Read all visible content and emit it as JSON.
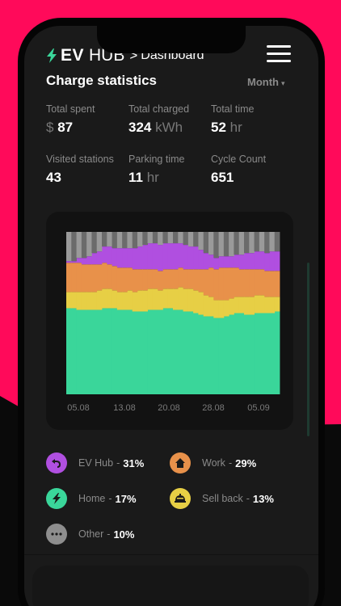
{
  "header": {
    "brand_strong": "EV",
    "brand_rest": "HUB",
    "separator": ">",
    "page": "Dashboard"
  },
  "section": {
    "title": "Charge statistics",
    "period": "Month"
  },
  "stats": [
    {
      "label": "Total spent",
      "prefix": "$",
      "value": "87",
      "unit": ""
    },
    {
      "label": "Total charged",
      "prefix": "",
      "value": "324",
      "unit": "kWh"
    },
    {
      "label": "Total time",
      "prefix": "",
      "value": "52",
      "unit": "hr"
    },
    {
      "label": "Visited stations",
      "prefix": "",
      "value": "43",
      "unit": ""
    },
    {
      "label": "Parking time",
      "prefix": "",
      "value": "11",
      "unit": "hr"
    },
    {
      "label": "Cycle Count",
      "prefix": "",
      "value": "651",
      "unit": ""
    }
  ],
  "legend": [
    {
      "name": "EV Hub",
      "pct": "31%",
      "color": "#b04fe0",
      "icon": "return-arrow-icon"
    },
    {
      "name": "Work",
      "pct": "29%",
      "color": "#e8914a",
      "icon": "house-icon"
    },
    {
      "name": "Home",
      "pct": "17%",
      "color": "#3ad69a",
      "icon": "lightning-icon"
    },
    {
      "name": "Sell back",
      "pct": "13%",
      "color": "#e7cf45",
      "icon": "cloche-icon"
    },
    {
      "name": "Other",
      "pct": "10%",
      "color": "#8e8e8e",
      "icon": "ellipsis-icon"
    }
  ],
  "chart_data": {
    "type": "area",
    "stacked": true,
    "x_ticks": [
      "05.08",
      "13.08",
      "20.08",
      "28.08",
      "05.09"
    ],
    "x": [
      1,
      2,
      3,
      4,
      5,
      6,
      7,
      8,
      9,
      10,
      11,
      12,
      13,
      14,
      15,
      16,
      17,
      18,
      19,
      20,
      21,
      22,
      23,
      24,
      25,
      26,
      27,
      28,
      29,
      30,
      31,
      32,
      33,
      34,
      35,
      36,
      37,
      38,
      39,
      40,
      41,
      42
    ],
    "ylim": [
      0,
      100
    ],
    "series": [
      {
        "name": "Home",
        "color": "#3ad69a",
        "values": [
          53,
          53,
          52,
          52,
          52,
          52,
          52,
          53,
          53,
          53,
          52,
          52,
          52,
          51,
          51,
          51,
          52,
          52,
          52,
          53,
          53,
          52,
          52,
          51,
          51,
          50,
          49,
          48,
          48,
          47,
          47,
          48,
          49,
          50,
          50,
          49,
          49,
          50,
          50,
          50,
          50,
          51
        ]
      },
      {
        "name": "Sell back",
        "color": "#e7cf45",
        "values": [
          10,
          10,
          11,
          11,
          11,
          11,
          12,
          12,
          12,
          11,
          11,
          11,
          12,
          12,
          13,
          13,
          13,
          13,
          12,
          12,
          12,
          13,
          14,
          14,
          14,
          14,
          14,
          13,
          12,
          11,
          11,
          10,
          10,
          10,
          10,
          11,
          11,
          11,
          11,
          10,
          10,
          9
        ]
      },
      {
        "name": "Work",
        "color": "#e8914a",
        "values": [
          18,
          18,
          18,
          17,
          17,
          17,
          16,
          16,
          15,
          15,
          15,
          15,
          14,
          14,
          13,
          13,
          12,
          12,
          12,
          12,
          12,
          12,
          12,
          12,
          12,
          13,
          14,
          16,
          18,
          19,
          20,
          20,
          19,
          18,
          17,
          17,
          17,
          16,
          16,
          16,
          16,
          16
        ]
      },
      {
        "name": "EV Hub",
        "color": "#b04fe0",
        "values": [
          1,
          1,
          3,
          4,
          5,
          7,
          8,
          10,
          11,
          11,
          12,
          12,
          12,
          13,
          14,
          15,
          16,
          16,
          16,
          16,
          16,
          16,
          15,
          15,
          14,
          14,
          12,
          10,
          8,
          7,
          7,
          7,
          7,
          8,
          9,
          10,
          10,
          11,
          11,
          11,
          12,
          12
        ]
      },
      {
        "name": "Other",
        "color": "#8e8e8e",
        "values": [
          18,
          18,
          16,
          16,
          15,
          13,
          12,
          9,
          9,
          10,
          10,
          10,
          10,
          10,
          9,
          8,
          7,
          7,
          8,
          7,
          7,
          7,
          7,
          8,
          9,
          9,
          11,
          13,
          14,
          16,
          15,
          15,
          15,
          14,
          14,
          13,
          13,
          12,
          12,
          13,
          12,
          12
        ]
      }
    ]
  }
}
